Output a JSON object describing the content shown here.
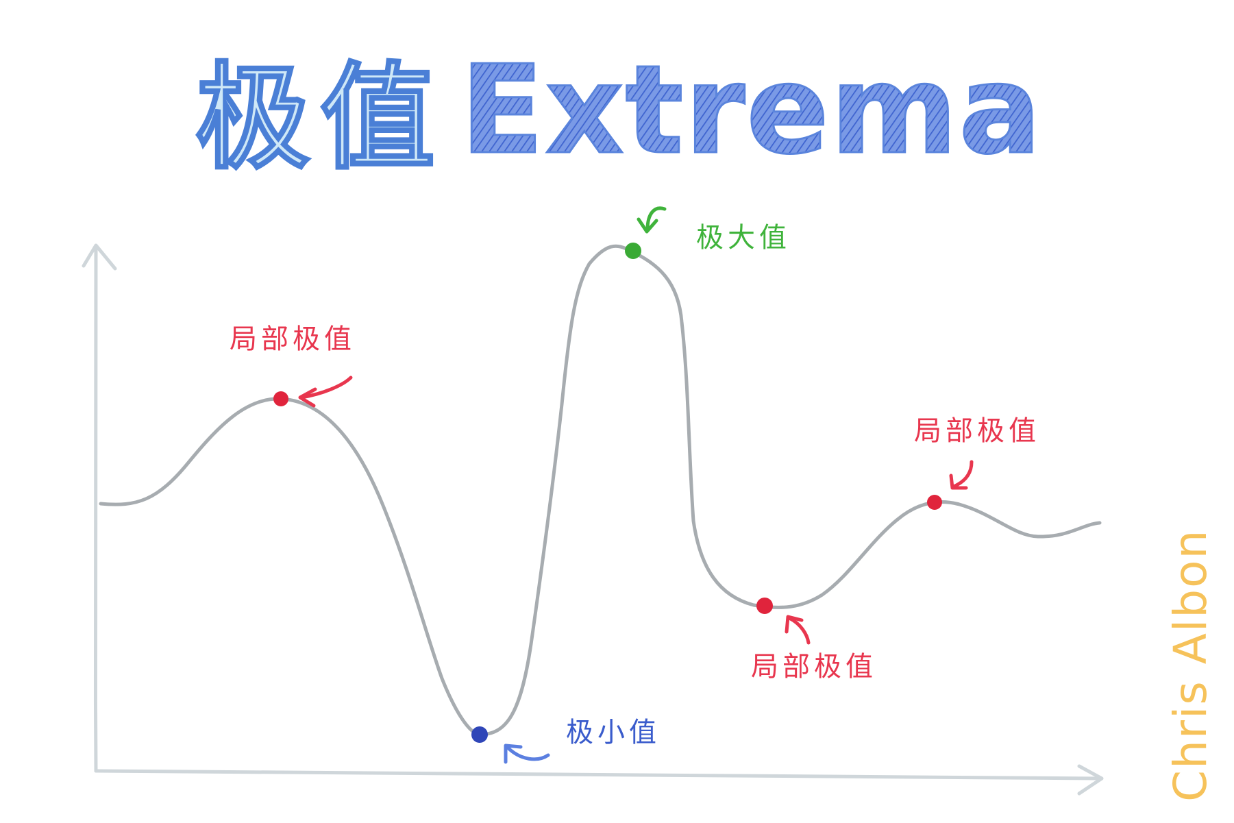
{
  "title": {
    "chinese": "极值",
    "english": "Extrema"
  },
  "labels": {
    "global_max": "极大值",
    "global_min": "极小值",
    "local_left": "局部极值",
    "local_right_max": "局部极值",
    "local_right_min": "局部极值"
  },
  "signature": "Chris Albon",
  "colors": {
    "title_fill": "#cfe8f7",
    "title_blue": "#4a7fd6",
    "curve": "#a7acb0",
    "axis": "#cfd6da",
    "local_point": "#e0243c",
    "global_max_point": "#3aaa35",
    "global_min_point": "#2f46b8",
    "signature": "#f6c25a"
  }
}
